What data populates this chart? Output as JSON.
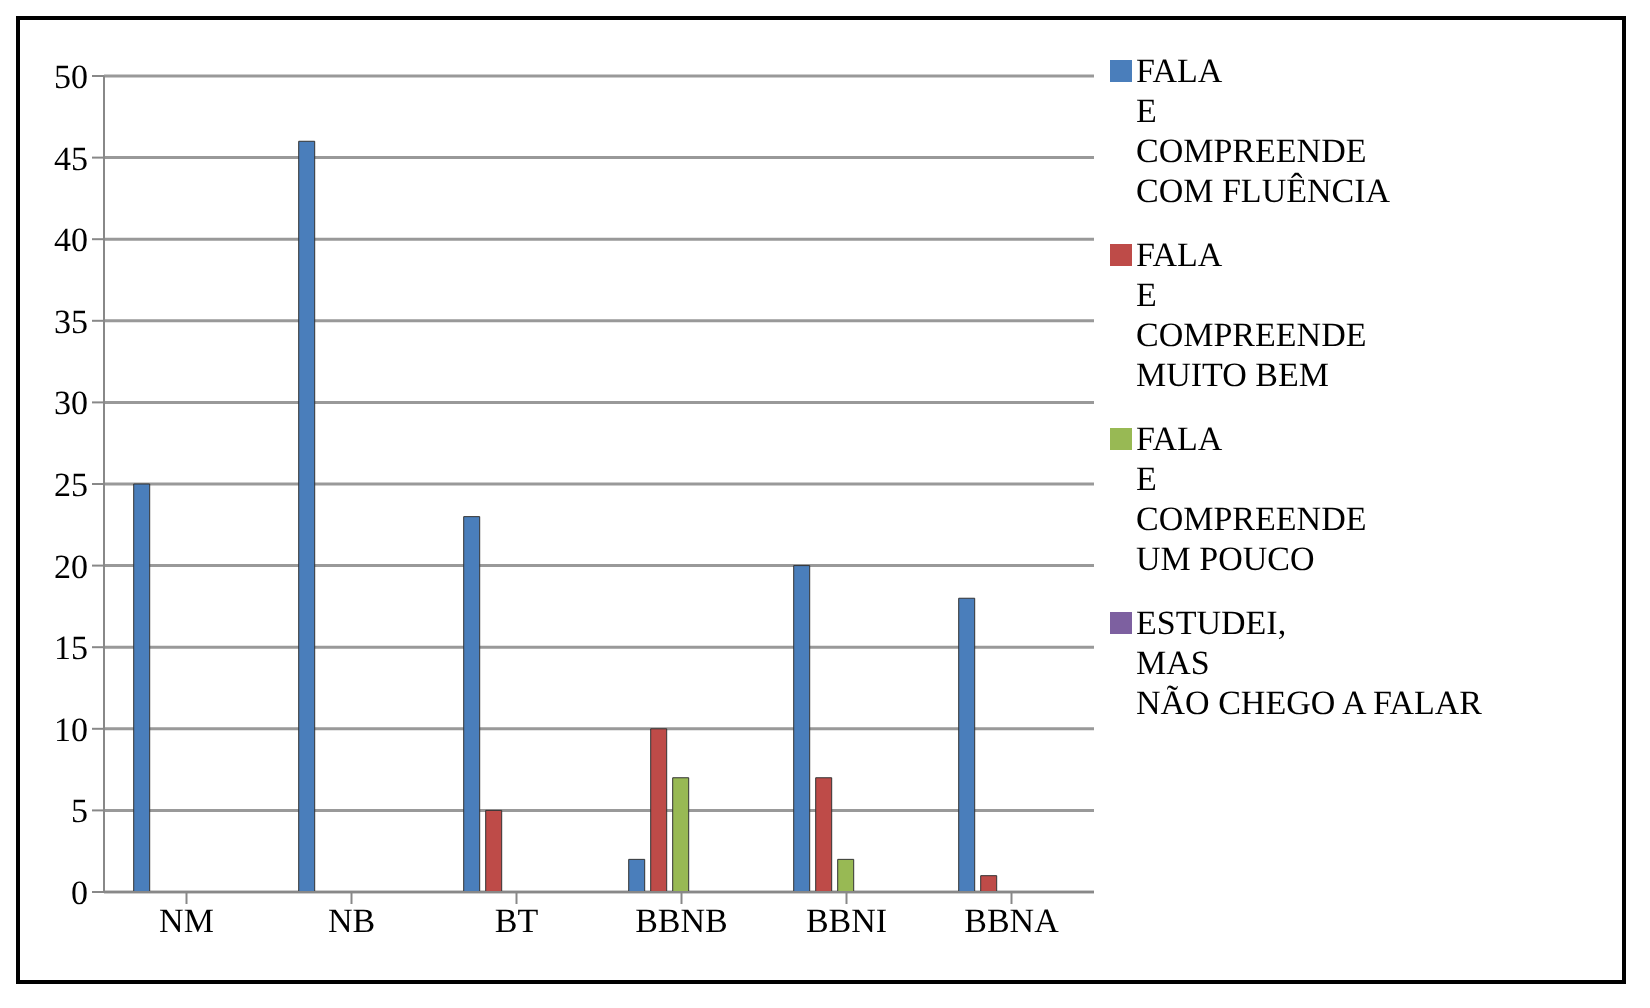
{
  "chart_data": {
    "type": "bar",
    "categories": [
      "NM",
      "NB",
      "BT",
      "BBNB",
      "BBNI",
      "BBNA"
    ],
    "series": [
      {
        "name": "FALA\nE\nCOMPREENDE\nCOM FLUÊNCIA",
        "color": "#4a7ebb",
        "values": [
          25,
          46,
          23,
          2,
          20,
          18
        ]
      },
      {
        "name": "FALA\nE\nCOMPREENDE\nMUITO BEM",
        "color": "#be4b48",
        "values": [
          0,
          0,
          5,
          10,
          7,
          1
        ]
      },
      {
        "name": "FALA\nE\nCOMPREENDE\nUM POUCO",
        "color": "#98b954",
        "values": [
          0,
          0,
          0,
          7,
          2,
          0
        ]
      },
      {
        "name": "ESTUDEI,\nMAS\nNÃO CHEGO A FALAR",
        "color": "#7d60a0",
        "values": [
          0,
          0,
          0,
          0,
          0,
          0
        ]
      },
      {
        "color": "#46aac5",
        "values": [
          0,
          0,
          0,
          0,
          0,
          0
        ]
      }
    ],
    "ylim": [
      0,
      50
    ],
    "yticks": [
      0,
      5,
      10,
      15,
      20,
      25,
      30,
      35,
      40,
      45,
      50
    ],
    "grid": "y",
    "legend": "right"
  }
}
